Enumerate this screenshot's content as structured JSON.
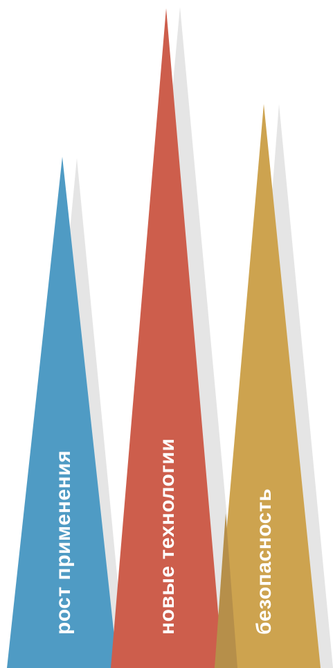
{
  "peaks": [
    {
      "label": "рост применения",
      "color": "#4f9bc4",
      "shadow_color": "#e5e5e5"
    },
    {
      "label": "новые технологии",
      "color": "#cd5e4c",
      "shadow_color": "#e5e5e5"
    },
    {
      "label": "безопасность",
      "color": "#cda34f",
      "shadow_color": "#e5e5e5"
    }
  ],
  "overlap_color": "#b68f4a",
  "background_color": "#ffffff"
}
